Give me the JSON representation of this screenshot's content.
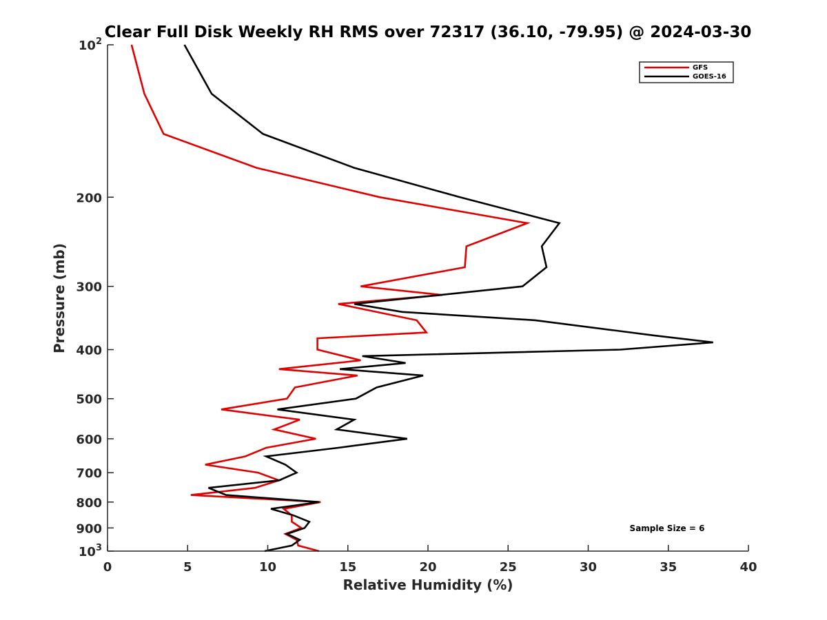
{
  "chart_data": {
    "type": "line",
    "title": "Clear Full Disk Weekly RH RMS over 72317 (36.10, -79.95) @ 2024-03-30",
    "xlabel": "Relative Humidity (%)",
    "ylabel": "Pressure (mb)",
    "xlim": [
      0,
      40
    ],
    "ylim": [
      100,
      1000
    ],
    "y_scale": "log",
    "y_reversed": true,
    "grid": false,
    "legend_position": "top-right",
    "x_ticks": [
      0,
      5,
      10,
      15,
      20,
      25,
      30,
      35,
      40
    ],
    "x_tick_labels": [
      "0",
      "5",
      "10",
      "15",
      "20",
      "25",
      "30",
      "35",
      "40"
    ],
    "y_ticks": [
      {
        "value": 100,
        "base": "10",
        "exp": "2"
      },
      {
        "value": 200,
        "label": "200"
      },
      {
        "value": 300,
        "label": "300"
      },
      {
        "value": 400,
        "label": "400"
      },
      {
        "value": 500,
        "label": "500"
      },
      {
        "value": 600,
        "label": "600"
      },
      {
        "value": 700,
        "label": "700"
      },
      {
        "value": 800,
        "label": "800"
      },
      {
        "value": 900,
        "label": "900"
      },
      {
        "value": 1000,
        "base": "10",
        "exp": "3"
      }
    ],
    "series": [
      {
        "name": "GFS",
        "color": "#e00000",
        "points": [
          [
            1.5,
            100
          ],
          [
            2.3,
            125
          ],
          [
            3.5,
            150
          ],
          [
            9.3,
            175
          ],
          [
            17,
            200
          ],
          [
            26.2,
            225
          ],
          [
            22.4,
            250
          ],
          [
            22.3,
            275
          ],
          [
            15.8,
            300
          ],
          [
            20.9,
            312
          ],
          [
            14.4,
            325
          ],
          [
            19.3,
            350
          ],
          [
            19.9,
            370
          ],
          [
            13.1,
            380
          ],
          [
            13.1,
            400
          ],
          [
            15.8,
            420
          ],
          [
            10.7,
            437
          ],
          [
            15.6,
            450
          ],
          [
            11.7,
            475
          ],
          [
            11.2,
            500
          ],
          [
            7.1,
            525
          ],
          [
            12.0,
            550
          ],
          [
            10.4,
            575
          ],
          [
            13.0,
            600
          ],
          [
            9.9,
            625
          ],
          [
            8.6,
            650
          ],
          [
            6.1,
            675
          ],
          [
            9.4,
            700
          ],
          [
            10.7,
            725
          ],
          [
            9.2,
            750
          ],
          [
            5.2,
            775
          ],
          [
            13.3,
            800
          ],
          [
            11.0,
            825
          ],
          [
            11.5,
            850
          ],
          [
            11.5,
            875
          ],
          [
            12.1,
            900
          ],
          [
            11.1,
            925
          ],
          [
            11.8,
            950
          ],
          [
            11.9,
            975
          ],
          [
            13.2,
            1000
          ]
        ]
      },
      {
        "name": "GOES-16",
        "color": "#000000",
        "points": [
          [
            4.8,
            100
          ],
          [
            6.5,
            125
          ],
          [
            9.7,
            150
          ],
          [
            15.4,
            175
          ],
          [
            22,
            200
          ],
          [
            28.2,
            225
          ],
          [
            27.1,
            250
          ],
          [
            27.4,
            275
          ],
          [
            25.9,
            300
          ],
          [
            15.4,
            325
          ],
          [
            18.4,
            337
          ],
          [
            26.7,
            350
          ],
          [
            34.1,
            375
          ],
          [
            37.8,
            387
          ],
          [
            32.0,
            400
          ],
          [
            15.9,
            412
          ],
          [
            18.6,
            425
          ],
          [
            14.5,
            437
          ],
          [
            19.7,
            450
          ],
          [
            16.8,
            475
          ],
          [
            15.5,
            500
          ],
          [
            10.6,
            525
          ],
          [
            15.4,
            550
          ],
          [
            14.3,
            575
          ],
          [
            18.7,
            600
          ],
          [
            14.4,
            625
          ],
          [
            9.9,
            650
          ],
          [
            11.1,
            675
          ],
          [
            11.8,
            700
          ],
          [
            10.7,
            725
          ],
          [
            6.3,
            750
          ],
          [
            7.4,
            775
          ],
          [
            13.2,
            800
          ],
          [
            10.2,
            825
          ],
          [
            11.6,
            850
          ],
          [
            12.6,
            875
          ],
          [
            12.3,
            900
          ],
          [
            11.2,
            925
          ],
          [
            12.0,
            950
          ],
          [
            11.5,
            975
          ],
          [
            9.8,
            1000
          ]
        ]
      }
    ],
    "annotations": [
      "Sample Size = 6"
    ]
  }
}
